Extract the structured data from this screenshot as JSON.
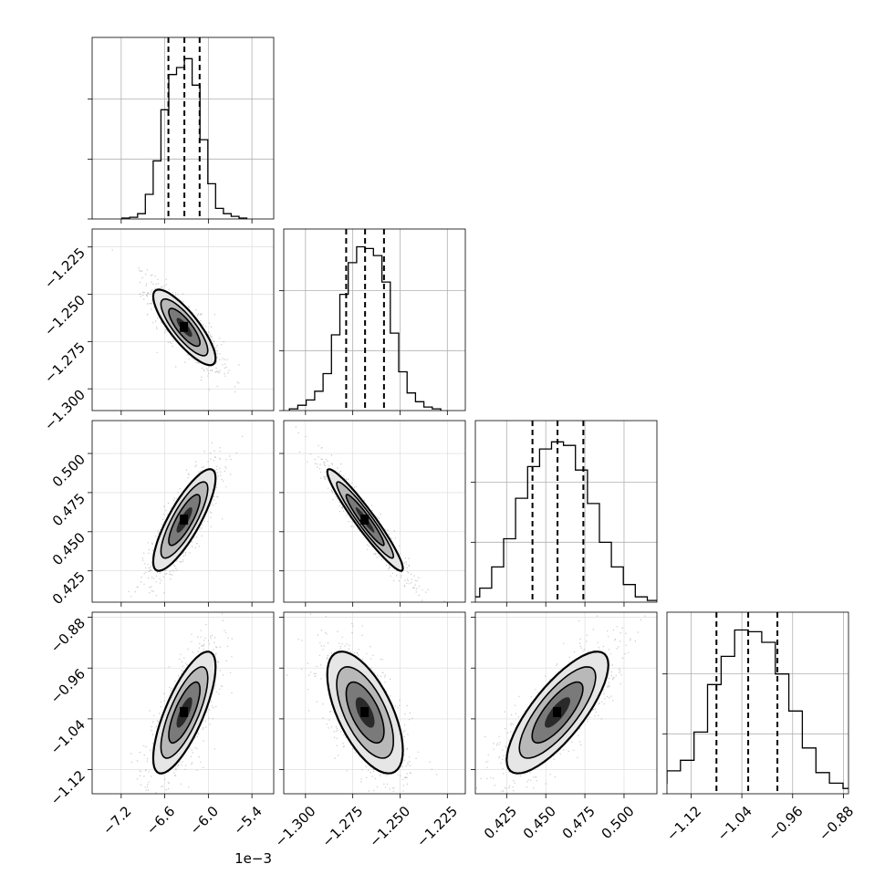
{
  "chart_data": {
    "type": "corner",
    "n_params": 4,
    "params": [
      {
        "range": [
          -7.6,
          -5.1
        ],
        "ticks": [
          -7.2,
          -6.6,
          -6.0,
          -5.4
        ],
        "tick_labels": [
          "−7.2",
          "−6.6",
          "−6.0",
          "−5.4"
        ],
        "offset_label": "1e−3",
        "quantiles": [
          -6.55,
          -6.33,
          -6.12
        ],
        "hist": [
          0.5,
          1,
          3,
          14,
          33,
          62,
          82,
          86,
          91,
          76,
          45,
          20,
          6,
          3,
          1.5,
          0.5
        ],
        "hist_max": 100
      },
      {
        "range": [
          -1.3115,
          -1.2155
        ],
        "ticks": [
          -1.3,
          -1.275,
          -1.25,
          -1.225
        ],
        "tick_labels": [
          "−1.300",
          "−1.275",
          "−1.250",
          "−1.225"
        ],
        "quantiles": [
          -1.2785,
          -1.2685,
          -1.2585
        ],
        "hist": [
          1,
          3,
          6,
          11,
          21,
          43,
          66,
          84,
          93,
          92,
          88,
          73,
          44,
          22,
          10,
          5,
          2,
          1
        ],
        "hist_max": 100
      },
      {
        "range": [
          0.405,
          0.521
        ],
        "ticks": [
          0.425,
          0.45,
          0.475,
          0.5
        ],
        "tick_labels": [
          "0.425",
          "0.450",
          "0.475",
          "0.500"
        ],
        "quantiles": [
          0.4415,
          0.4575,
          0.474
        ],
        "hist": [
          1,
          3,
          8,
          20,
          36,
          59,
          77,
          87,
          91,
          89,
          75,
          56,
          34,
          20,
          10,
          3,
          1
        ],
        "hist_max": 100
      },
      {
        "range": [
          -1.158,
          -0.872
        ],
        "ticks": [
          -1.12,
          -1.04,
          -0.96,
          -0.88
        ],
        "tick_labels": [
          "−1.12",
          "−1.04",
          "−0.96",
          "−0.88"
        ],
        "quantiles": [
          -1.08,
          -1.03,
          -0.984
        ],
        "hist": [
          1,
          3,
          6,
          13,
          19,
          35,
          62,
          78,
          93,
          92,
          86,
          68,
          47,
          26,
          12,
          6,
          3,
          1
        ],
        "hist_max": 100
      }
    ],
    "pairs": [
      {
        "row": 1,
        "col": 0,
        "mean": [
          -6.33,
          -1.2675
        ],
        "corr": -0.82
      },
      {
        "row": 2,
        "col": 0,
        "mean": [
          -6.33,
          0.4575
        ],
        "corr": 0.82
      },
      {
        "row": 2,
        "col": 1,
        "mean": [
          -1.2685,
          0.4575
        ],
        "corr": -0.95
      },
      {
        "row": 3,
        "col": 0,
        "mean": [
          -6.33,
          -1.03
        ],
        "corr": 0.75
      },
      {
        "row": 3,
        "col": 1,
        "mean": [
          -1.2685,
          -1.03
        ],
        "corr": -0.62
      },
      {
        "row": 3,
        "col": 2,
        "mean": [
          0.4575,
          -1.03
        ],
        "corr": 0.78
      }
    ],
    "grid": true,
    "quantile_lines": "dashed",
    "contour_levels_sigma": [
      0.5,
      1.0,
      1.5,
      2.0
    ]
  }
}
